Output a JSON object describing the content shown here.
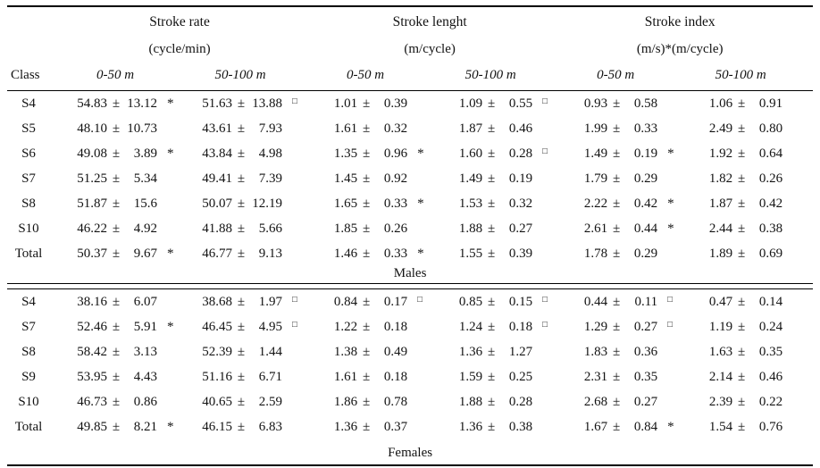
{
  "table": {
    "pm": "±",
    "class_header": "Class",
    "distance_headers": [
      "0-50 m",
      "50-100 m"
    ],
    "groups": [
      {
        "title": "Stroke rate",
        "unit": "(cycle/min)"
      },
      {
        "title": "Stroke lenght",
        "unit": "(m/cycle)"
      },
      {
        "title": "Stroke index",
        "unit": "(m/s)*(m/cycle)"
      }
    ],
    "flag_symbols": {
      "star": "*",
      "square": "□"
    },
    "sections": [
      {
        "caption": "Males",
        "rows": [
          {
            "class": "S4",
            "cells": [
              [
                "54.83",
                "13.12",
                "*"
              ],
              [
                "51.63",
                "13.88",
                "□"
              ],
              [
                "1.01",
                "0.39",
                ""
              ],
              [
                "1.09",
                "0.55",
                "□"
              ],
              [
                "0.93",
                "0.58",
                ""
              ],
              [
                "1.06",
                "0.91",
                ""
              ]
            ]
          },
          {
            "class": "S5",
            "cells": [
              [
                "48.10",
                "10.73",
                ""
              ],
              [
                "43.61",
                "7.93",
                ""
              ],
              [
                "1.61",
                "0.32",
                ""
              ],
              [
                "1.87",
                "0.46",
                ""
              ],
              [
                "1.99",
                "0.33",
                ""
              ],
              [
                "2.49",
                "0.80",
                ""
              ]
            ]
          },
          {
            "class": "S6",
            "cells": [
              [
                "49.08",
                "3.89",
                "*"
              ],
              [
                "43.84",
                "4.98",
                ""
              ],
              [
                "1.35",
                "0.96",
                "*"
              ],
              [
                "1.60",
                "0.28",
                "□"
              ],
              [
                "1.49",
                "0.19",
                "*"
              ],
              [
                "1.92",
                "0.64",
                ""
              ]
            ]
          },
          {
            "class": "S7",
            "cells": [
              [
                "51.25",
                "5.34",
                ""
              ],
              [
                "49.41",
                "7.39",
                ""
              ],
              [
                "1.45",
                "0.92",
                ""
              ],
              [
                "1.49",
                "0.19",
                ""
              ],
              [
                "1.79",
                "0.29",
                ""
              ],
              [
                "1.82",
                "0.26",
                ""
              ]
            ]
          },
          {
            "class": "S8",
            "cells": [
              [
                "51.87",
                "15.6",
                ""
              ],
              [
                "50.07",
                "12.19",
                ""
              ],
              [
                "1.65",
                "0.33",
                "*"
              ],
              [
                "1.53",
                "0.32",
                ""
              ],
              [
                "2.22",
                "0.42",
                "*"
              ],
              [
                "1.87",
                "0.42",
                ""
              ]
            ]
          },
          {
            "class": "S10",
            "cells": [
              [
                "46.22",
                "4.92",
                ""
              ],
              [
                "41.88",
                "5.66",
                ""
              ],
              [
                "1.85",
                "0.26",
                ""
              ],
              [
                "1.88",
                "0.27",
                ""
              ],
              [
                "2.61",
                "0.44",
                "*"
              ],
              [
                "2.44",
                "0.38",
                ""
              ]
            ]
          },
          {
            "class": "Total",
            "cells": [
              [
                "50.37",
                "9.67",
                "*"
              ],
              [
                "46.77",
                "9.13",
                ""
              ],
              [
                "1.46",
                "0.33",
                "*"
              ],
              [
                "1.55",
                "0.39",
                ""
              ],
              [
                "1.78",
                "0.29",
                ""
              ],
              [
                "1.89",
                "0.69",
                ""
              ]
            ]
          }
        ]
      },
      {
        "caption": "Females",
        "rows": [
          {
            "class": "S4",
            "cells": [
              [
                "38.16",
                "6.07",
                ""
              ],
              [
                "38.68",
                "1.97",
                "□"
              ],
              [
                "0.84",
                "0.17",
                "□"
              ],
              [
                "0.85",
                "0.15",
                "□"
              ],
              [
                "0.44",
                "0.11",
                "□"
              ],
              [
                "0.47",
                "0.14",
                ""
              ]
            ]
          },
          {
            "class": "S7",
            "cells": [
              [
                "52.46",
                "5.91",
                "*"
              ],
              [
                "46.45",
                "4.95",
                "□"
              ],
              [
                "1.22",
                "0.18",
                ""
              ],
              [
                "1.24",
                "0.18",
                "□"
              ],
              [
                "1.29",
                "0.27",
                "□"
              ],
              [
                "1.19",
                "0.24",
                ""
              ]
            ]
          },
          {
            "class": "S8",
            "cells": [
              [
                "58.42",
                "3.13",
                ""
              ],
              [
                "52.39",
                "1.44",
                ""
              ],
              [
                "1.38",
                "0.49",
                ""
              ],
              [
                "1.36",
                "1.27",
                ""
              ],
              [
                "1.83",
                "0.36",
                ""
              ],
              [
                "1.63",
                "0.35",
                ""
              ]
            ]
          },
          {
            "class": "S9",
            "cells": [
              [
                "53.95",
                "4.43",
                ""
              ],
              [
                "51.16",
                "6.71",
                ""
              ],
              [
                "1.61",
                "0.18",
                ""
              ],
              [
                "1.59",
                "0.25",
                ""
              ],
              [
                "2.31",
                "0.35",
                ""
              ],
              [
                "2.14",
                "0.46",
                ""
              ]
            ]
          },
          {
            "class": "S10",
            "cells": [
              [
                "46.73",
                "0.86",
                ""
              ],
              [
                "40.65",
                "2.59",
                ""
              ],
              [
                "1.86",
                "0.78",
                ""
              ],
              [
                "1.88",
                "0.28",
                ""
              ],
              [
                "2.68",
                "0.27",
                ""
              ],
              [
                "2.39",
                "0.22",
                ""
              ]
            ]
          },
          {
            "class": "Total",
            "cells": [
              [
                "49.85",
                "8.21",
                "*"
              ],
              [
                "46.15",
                "6.83",
                ""
              ],
              [
                "1.36",
                "0.37",
                ""
              ],
              [
                "1.36",
                "0.38",
                ""
              ],
              [
                "1.67",
                "0.84",
                "*"
              ],
              [
                "1.54",
                "0.76",
                ""
              ]
            ]
          }
        ]
      }
    ]
  }
}
